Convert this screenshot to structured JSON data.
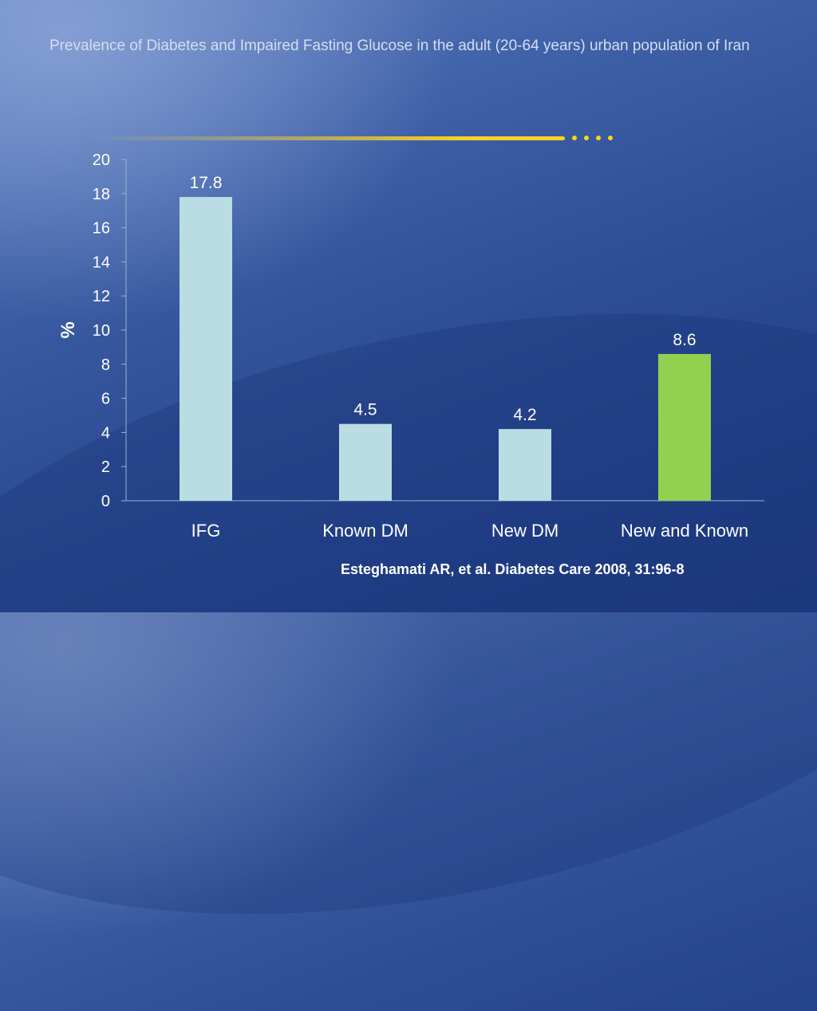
{
  "slide": {
    "title": "Prevalence of Diabetes and Impaired Fasting Glucose in the adult (20-64 years) urban population of Iran",
    "citation": "Esteghamati AR, et al. Diabetes Care 2008, 31:96-8"
  },
  "colors": {
    "bar_default": "#b9dde3",
    "bar_highlight": "#92d050",
    "divider": "#ffd21f"
  },
  "chart_data": {
    "type": "bar",
    "categories": [
      "IFG",
      "Known DM",
      "New DM",
      "New and Known"
    ],
    "values": [
      17.8,
      4.5,
      4.2,
      8.6
    ],
    "data_labels": [
      "17.8",
      "4.5",
      "4.2",
      "8.6"
    ],
    "highlight_index": 3,
    "ylabel": "%",
    "ylim": [
      0,
      20
    ],
    "yticks": [
      0,
      2,
      4,
      6,
      8,
      10,
      12,
      14,
      16,
      18,
      20
    ],
    "grid": false,
    "legend": "none"
  }
}
